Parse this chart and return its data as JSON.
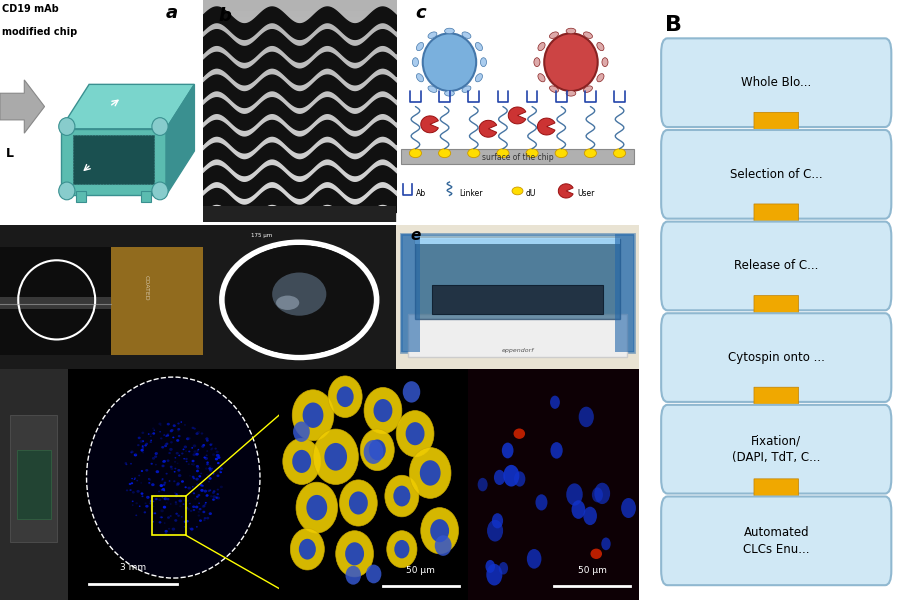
{
  "figure_bg": "#ffffff",
  "panel_label_a": "a",
  "panel_label_b": "b",
  "panel_label_c": "c",
  "panel_label_e": "e",
  "panel_label_B": "B",
  "flowchart_box_color": "#d0e8f5",
  "flowchart_box_edge": "#90b8d0",
  "flowchart_arrow_color": "#f0a800",
  "chip_text_line1": "CD19 mAb",
  "chip_text_line2": "modified chip",
  "chip_arrow_label": "L",
  "surface_text": "surface of the chip",
  "scale_bar_3mm": "3 mm",
  "scale_bar_50um": "50 μm",
  "box_texts": [
    "Whole Blo...",
    "Selection of C...",
    "Release of C...",
    "Cytospin onto ...",
    "Fixation/\n(DAPI, TdT, C...",
    "Automated\nCLCs Enu..."
  ],
  "chip_teal": "#5bbcb0",
  "chip_teal_dark": "#3a9090",
  "chip_teal_light": "#7ad5cc",
  "chip_interior": "#1a5050",
  "chip_bg": "#e8f4f4"
}
